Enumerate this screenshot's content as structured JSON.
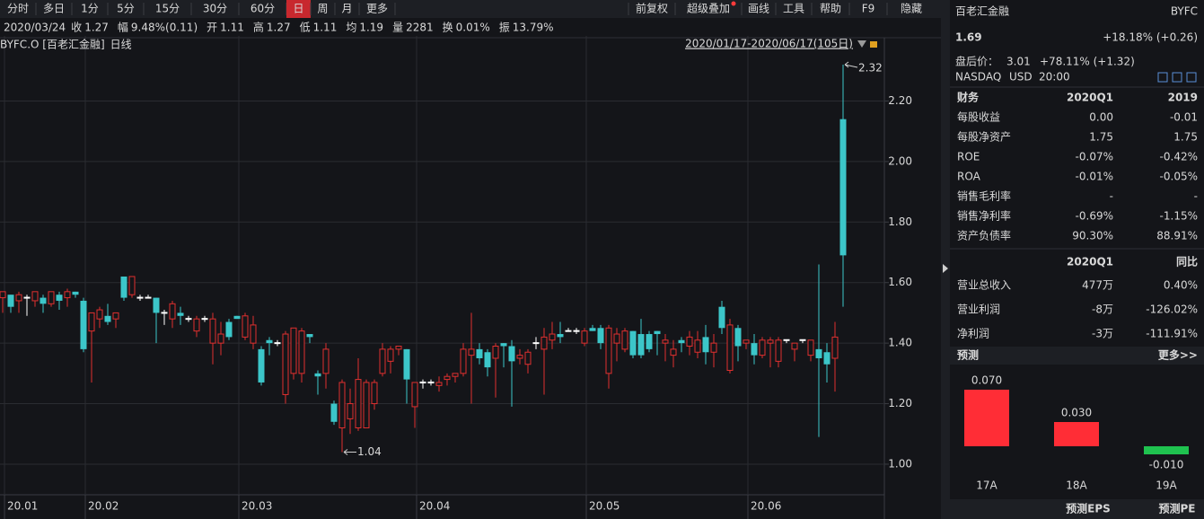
{
  "toolbar": {
    "periods": [
      "分时",
      "多日",
      "1分",
      "5分",
      "15分",
      "30分",
      "60分",
      "日",
      "周",
      "月",
      "更多"
    ],
    "tools": [
      "前复权",
      "超级叠加",
      "画线",
      "工具",
      "帮助",
      "F9",
      "隐藏"
    ]
  },
  "quote_bar": {
    "date": "2020/03/24",
    "items": [
      {
        "label": "收",
        "value": "1.27",
        "color": "#ff4a4a"
      },
      {
        "label": "幅",
        "value": "9.48%(0.11)",
        "color": "#ff4a4a"
      },
      {
        "label": "开",
        "value": "1.11",
        "color": "#3bd16f"
      },
      {
        "label": "高",
        "value": "1.27",
        "color": "#ff4a4a"
      },
      {
        "label": "低",
        "value": "1.11",
        "color": "#3bd16f"
      },
      {
        "label": "均",
        "value": "1.19",
        "color": "#ff4a4a"
      },
      {
        "label": "量",
        "value": "2281",
        "color": "#d9d9d9"
      },
      {
        "label": "换",
        "value": "0.01%",
        "color": "#d9d9d9"
      },
      {
        "label": "振",
        "value": "13.79%",
        "color": "#d9d9d9"
      }
    ]
  },
  "chart_data": [
    {
      "type": "candlestick",
      "symbol_label": "BYFC.O [百老汇金融]",
      "period_label": "日线",
      "range_label": "2020/01/17-2020/06/17(105日)",
      "up_color": "#e0302f",
      "down_color": "#3cc6c9",
      "grid": true,
      "ylim": [
        0.902,
        2.415
      ],
      "yticks": [
        {
          "value": 1.0,
          "label": "1.00"
        },
        {
          "value": 1.2,
          "label": "1.20"
        },
        {
          "value": 1.4,
          "label": "1.40"
        },
        {
          "value": 1.6,
          "label": "1.60"
        },
        {
          "value": 1.8,
          "label": "1.80"
        },
        {
          "value": 2.0,
          "label": "2.00"
        },
        {
          "value": 2.2,
          "label": "2.20"
        }
      ],
      "xticks": [
        {
          "value": 0,
          "label": "20.01"
        },
        {
          "value": 10,
          "label": "20.02"
        },
        {
          "value": 29,
          "label": "20.03"
        },
        {
          "value": 51,
          "label": "20.04"
        },
        {
          "value": 72,
          "label": "20.05"
        },
        {
          "value": 92,
          "label": "20.06"
        }
      ],
      "high_label": "2.32",
      "low_label": "1.04",
      "candles": [
        [
          1.55,
          1.57,
          1.5,
          1.57
        ],
        [
          1.56,
          1.56,
          1.5,
          1.52
        ],
        [
          1.54,
          1.57,
          1.5,
          1.56
        ],
        [
          1.55,
          1.56,
          1.49,
          1.55
        ],
        [
          1.54,
          1.57,
          1.52,
          1.57
        ],
        [
          1.55,
          1.56,
          1.5,
          1.53
        ],
        [
          1.53,
          1.57,
          1.52,
          1.57
        ],
        [
          1.56,
          1.57,
          1.51,
          1.54
        ],
        [
          1.55,
          1.58,
          1.52,
          1.57
        ],
        [
          1.57,
          1.57,
          1.55,
          1.56
        ],
        [
          1.54,
          1.55,
          1.37,
          1.38
        ],
        [
          1.44,
          1.5,
          1.27,
          1.5
        ],
        [
          1.48,
          1.52,
          1.45,
          1.51
        ],
        [
          1.49,
          1.53,
          1.46,
          1.47
        ],
        [
          1.48,
          1.5,
          1.45,
          1.5
        ],
        [
          1.62,
          1.62,
          1.54,
          1.55
        ],
        [
          1.56,
          1.62,
          1.55,
          1.62
        ],
        [
          1.55,
          1.56,
          1.54,
          1.55
        ],
        [
          1.55,
          1.56,
          1.55,
          1.55
        ],
        [
          1.55,
          1.55,
          1.4,
          1.5
        ],
        [
          1.5,
          1.51,
          1.46,
          1.5
        ],
        [
          1.48,
          1.54,
          1.45,
          1.53
        ],
        [
          1.5,
          1.52,
          1.46,
          1.49
        ],
        [
          1.48,
          1.49,
          1.47,
          1.48
        ],
        [
          1.44,
          1.49,
          1.42,
          1.48
        ],
        [
          1.48,
          1.49,
          1.47,
          1.48
        ],
        [
          1.4,
          1.5,
          1.33,
          1.48
        ],
        [
          1.4,
          1.47,
          1.36,
          1.43
        ],
        [
          1.47,
          1.48,
          1.41,
          1.42
        ],
        [
          1.49,
          1.49,
          1.48,
          1.48
        ],
        [
          1.42,
          1.5,
          1.41,
          1.49
        ],
        [
          1.4,
          1.49,
          1.38,
          1.46
        ],
        [
          1.38,
          1.39,
          1.26,
          1.27
        ],
        [
          1.41,
          1.42,
          1.36,
          1.4
        ],
        [
          1.4,
          1.41,
          1.39,
          1.4
        ],
        [
          1.23,
          1.44,
          1.2,
          1.43
        ],
        [
          1.3,
          1.45,
          1.28,
          1.45
        ],
        [
          1.3,
          1.45,
          1.27,
          1.44
        ],
        [
          1.43,
          1.43,
          1.4,
          1.42
        ],
        [
          1.3,
          1.31,
          1.23,
          1.29
        ],
        [
          1.3,
          1.4,
          1.25,
          1.38
        ],
        [
          1.2,
          1.21,
          1.13,
          1.14
        ],
        [
          1.12,
          1.28,
          1.04,
          1.27
        ],
        [
          1.15,
          1.25,
          1.1,
          1.2
        ],
        [
          1.12,
          1.35,
          1.11,
          1.28
        ],
        [
          1.12,
          1.28,
          1.12,
          1.27
        ],
        [
          1.2,
          1.28,
          1.18,
          1.27
        ],
        [
          1.3,
          1.4,
          1.29,
          1.38
        ],
        [
          1.34,
          1.39,
          1.3,
          1.38
        ],
        [
          1.38,
          1.39,
          1.36,
          1.39
        ],
        [
          1.38,
          1.38,
          1.2,
          1.28
        ],
        [
          1.19,
          1.27,
          1.12,
          1.27
        ],
        [
          1.27,
          1.28,
          1.25,
          1.27
        ],
        [
          1.27,
          1.28,
          1.26,
          1.27
        ],
        [
          1.26,
          1.29,
          1.24,
          1.27
        ],
        [
          1.28,
          1.3,
          1.26,
          1.29
        ],
        [
          1.29,
          1.3,
          1.27,
          1.3
        ],
        [
          1.3,
          1.4,
          1.29,
          1.38
        ],
        [
          1.36,
          1.5,
          1.2,
          1.38
        ],
        [
          1.38,
          1.4,
          1.33,
          1.35
        ],
        [
          1.37,
          1.38,
          1.29,
          1.32
        ],
        [
          1.35,
          1.4,
          1.22,
          1.39
        ],
        [
          1.4,
          1.4,
          1.32,
          1.39
        ],
        [
          1.39,
          1.41,
          1.19,
          1.34
        ],
        [
          1.35,
          1.38,
          1.33,
          1.36
        ],
        [
          1.33,
          1.38,
          1.3,
          1.37
        ],
        [
          1.4,
          1.42,
          1.38,
          1.4
        ],
        [
          1.38,
          1.45,
          1.23,
          1.42
        ],
        [
          1.41,
          1.47,
          1.38,
          1.43
        ],
        [
          1.43,
          1.47,
          1.4,
          1.42
        ],
        [
          1.44,
          1.45,
          1.44,
          1.44
        ],
        [
          1.44,
          1.45,
          1.43,
          1.44
        ],
        [
          1.4,
          1.45,
          1.39,
          1.44
        ],
        [
          1.45,
          1.46,
          1.44,
          1.44
        ],
        [
          1.45,
          1.46,
          1.38,
          1.4
        ],
        [
          1.3,
          1.46,
          1.25,
          1.45
        ],
        [
          1.4,
          1.45,
          1.34,
          1.43
        ],
        [
          1.38,
          1.45,
          1.37,
          1.44
        ],
        [
          1.44,
          1.44,
          1.35,
          1.36
        ],
        [
          1.43,
          1.48,
          1.35,
          1.36
        ],
        [
          1.43,
          1.44,
          1.37,
          1.38
        ],
        [
          1.44,
          1.44,
          1.36,
          1.43
        ],
        [
          1.4,
          1.43,
          1.34,
          1.41
        ],
        [
          1.36,
          1.41,
          1.32,
          1.38
        ],
        [
          1.41,
          1.42,
          1.37,
          1.4
        ],
        [
          1.39,
          1.44,
          1.36,
          1.42
        ],
        [
          1.37,
          1.44,
          1.35,
          1.41
        ],
        [
          1.42,
          1.46,
          1.33,
          1.37
        ],
        [
          1.37,
          1.43,
          1.32,
          1.4
        ],
        [
          1.52,
          1.54,
          1.43,
          1.45
        ],
        [
          1.31,
          1.48,
          1.3,
          1.46
        ],
        [
          1.45,
          1.46,
          1.34,
          1.39
        ],
        [
          1.4,
          1.41,
          1.38,
          1.41
        ],
        [
          1.4,
          1.43,
          1.33,
          1.36
        ],
        [
          1.36,
          1.42,
          1.35,
          1.41
        ],
        [
          1.4,
          1.42,
          1.32,
          1.41
        ],
        [
          1.34,
          1.42,
          1.32,
          1.41
        ],
        [
          1.41,
          1.41,
          1.4,
          1.41
        ],
        [
          1.38,
          1.4,
          1.34,
          1.4
        ],
        [
          1.41,
          1.41,
          1.4,
          1.41
        ],
        [
          1.36,
          1.4,
          1.34,
          1.41
        ],
        [
          1.38,
          1.66,
          1.09,
          1.35
        ],
        [
          1.37,
          1.4,
          1.27,
          1.33
        ],
        [
          1.35,
          1.47,
          1.24,
          1.42
        ],
        [
          2.14,
          2.32,
          1.52,
          1.69
        ]
      ]
    },
    {
      "type": "bar",
      "title": "预测",
      "more": "更多>>",
      "categories": [
        "17A",
        "18A",
        "19A"
      ],
      "values": [
        0.07,
        0.03,
        -0.01
      ],
      "value_labels": [
        "0.070",
        "0.030",
        "-0.010"
      ],
      "pos_color": "#ff2d36",
      "neg_color": "#1fc24f"
    }
  ],
  "quote": {
    "name": "百老汇金融",
    "code": "BYFC",
    "price": "1.69",
    "change": "+18.18% (+0.26)",
    "after_label": "盘后价：",
    "after_price": "3.01",
    "after_change": "+78.11% (+1.32)",
    "exchange": "NASDAQ",
    "currency": "USD",
    "time": "20:00"
  },
  "finance": {
    "header": [
      "财务",
      "2020Q1",
      "2019"
    ],
    "rows": [
      [
        "每股收益",
        "0.00",
        "-0.01"
      ],
      [
        "每股净资产",
        "1.75",
        "1.75"
      ],
      [
        "ROE",
        "-0.07%",
        "-0.42%"
      ],
      [
        "ROA",
        "-0.01%",
        "-0.05%"
      ],
      [
        "销售毛利率",
        "-",
        "-"
      ],
      [
        "销售净利率",
        "-0.69%",
        "-1.15%"
      ],
      [
        "资产负债率",
        "90.30%",
        "88.91%"
      ]
    ]
  },
  "income": {
    "header": [
      "2020Q1",
      "同比"
    ],
    "rows": [
      [
        "营业总收入",
        "477万",
        "0.40%"
      ],
      [
        "营业利润",
        "-8万",
        "-126.02%"
      ],
      [
        "净利润",
        "-3万",
        "-111.91%"
      ]
    ]
  },
  "footer_tabs": [
    "预测EPS",
    "预测PE"
  ]
}
